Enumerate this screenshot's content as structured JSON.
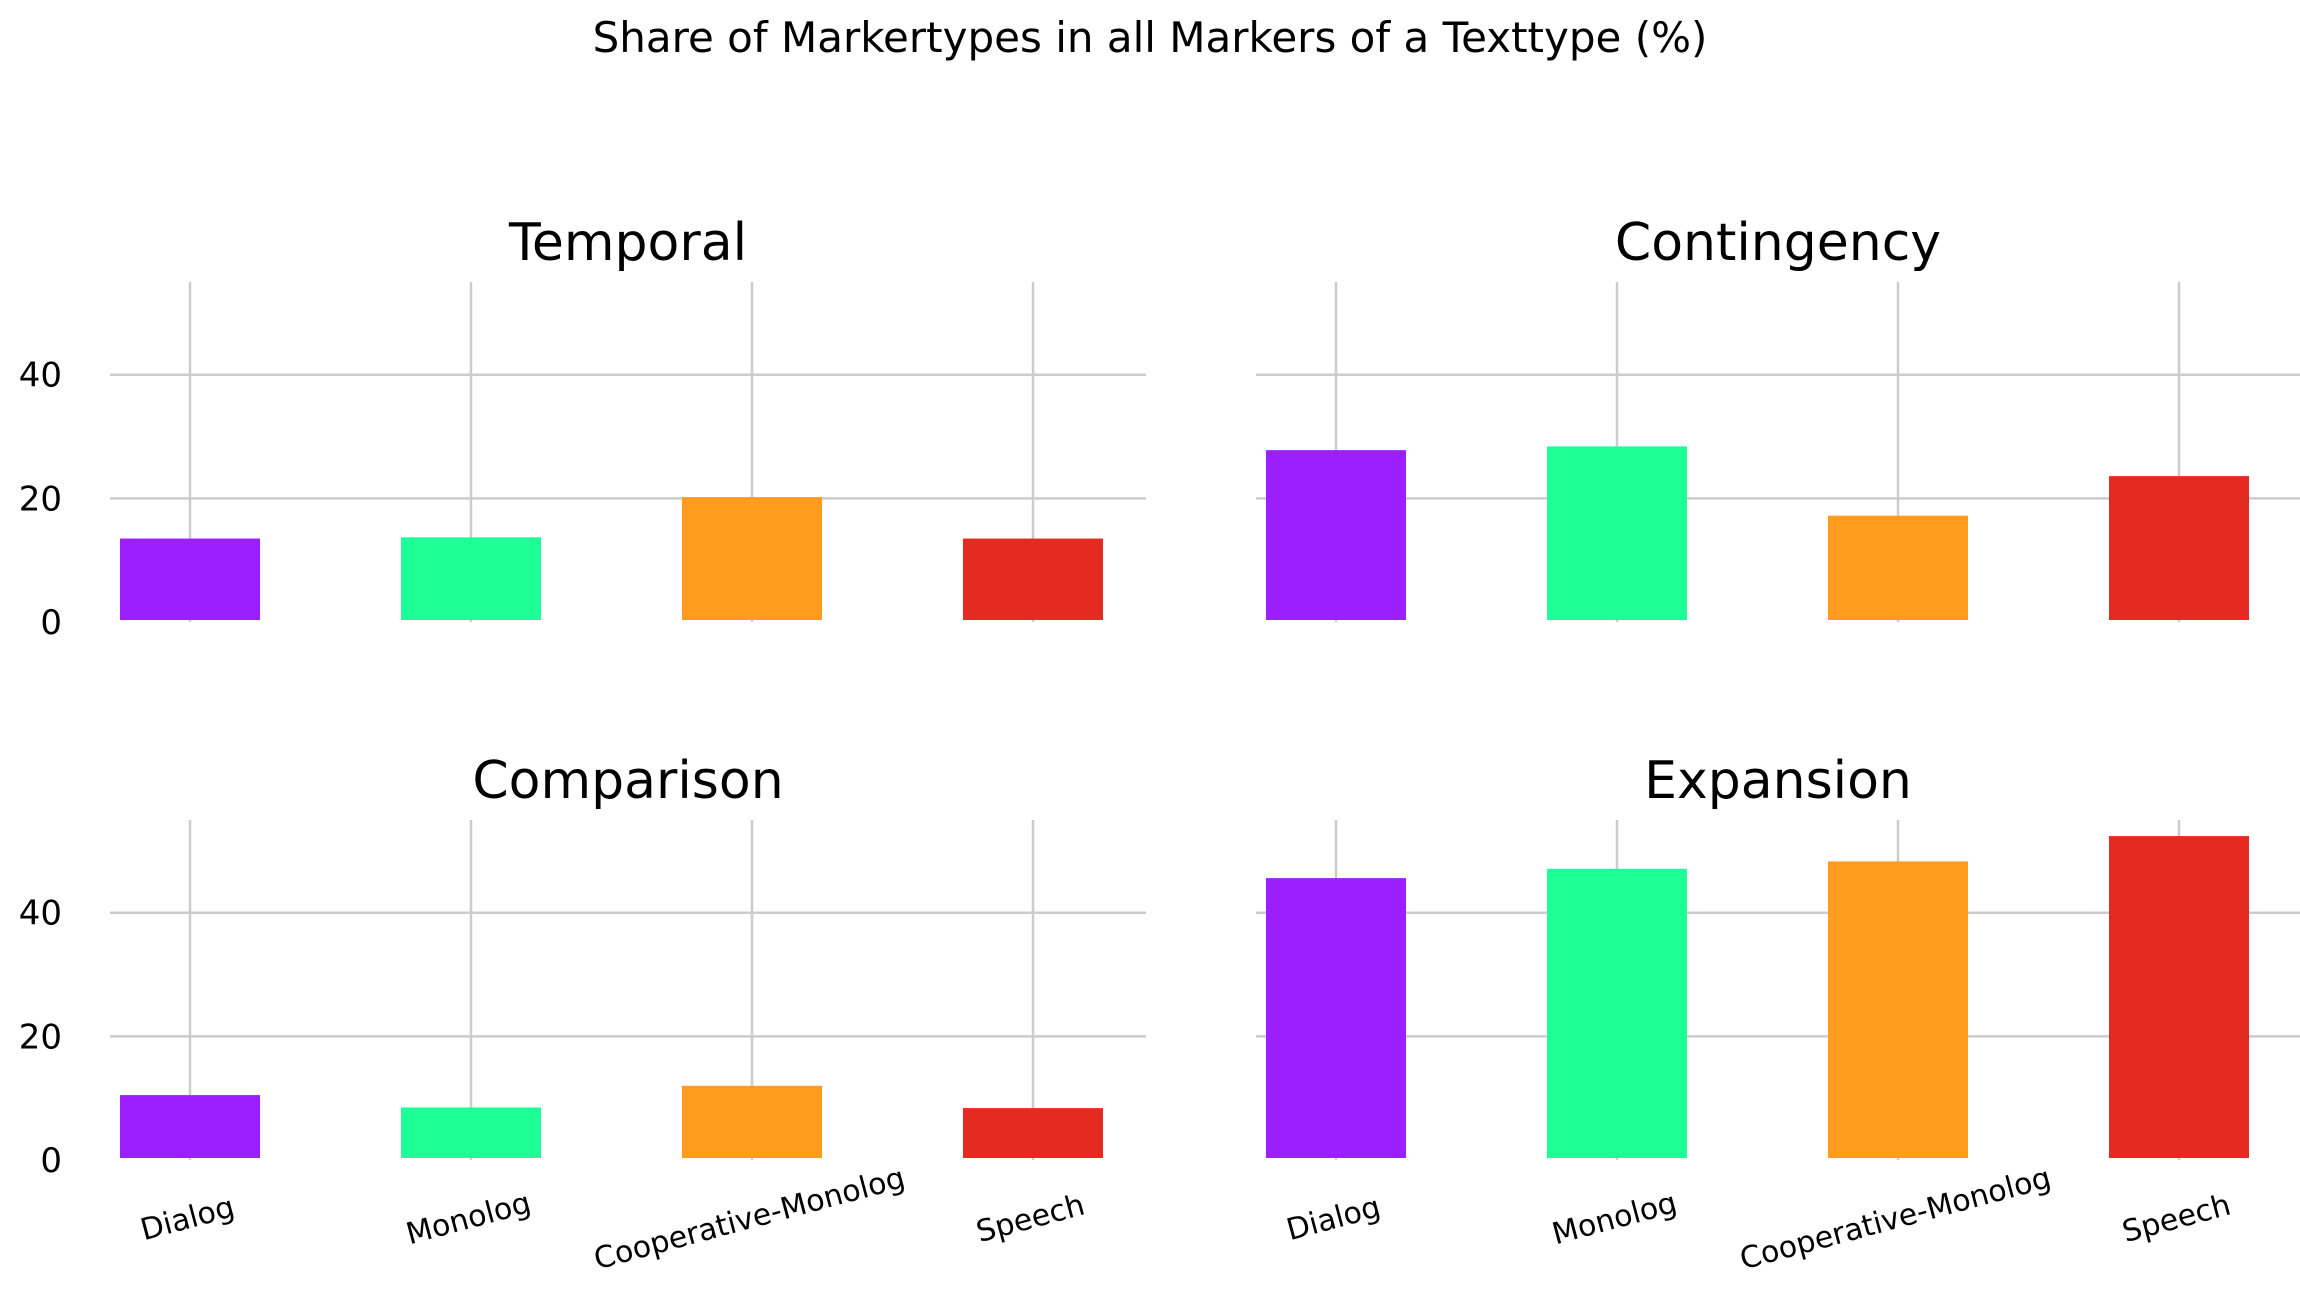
{
  "figure_title": "Share of Markertypes in all Markers of a Texttype (%)",
  "colors": {
    "grid": "#cccccc",
    "bars": [
      "#9b1fff",
      "#1dff96",
      "#ff9b1f",
      "#e52b21"
    ]
  },
  "chart_data": [
    {
      "type": "bar",
      "title": "Temporal",
      "categories": [
        "Dialog",
        "Monolog",
        "Cooperative-Monolog",
        "Speech"
      ],
      "values": [
        13.5,
        13.7,
        20.2,
        13.5
      ],
      "ylim": [
        0,
        55
      ],
      "yticks": [
        0,
        20,
        40
      ],
      "grid": true,
      "show_xticklabels": false,
      "show_yticklabels": true
    },
    {
      "type": "bar",
      "title": "Contingency",
      "categories": [
        "Dialog",
        "Monolog",
        "Cooperative-Monolog",
        "Speech"
      ],
      "values": [
        27.8,
        28.4,
        17.2,
        23.6
      ],
      "ylim": [
        0,
        55
      ],
      "yticks": [
        0,
        20,
        40
      ],
      "grid": true,
      "show_xticklabels": false,
      "show_yticklabels": false
    },
    {
      "type": "bar",
      "title": "Comparison",
      "categories": [
        "Dialog",
        "Monolog",
        "Cooperative-Monolog",
        "Speech"
      ],
      "values": [
        10.5,
        8.5,
        12.0,
        8.4
      ],
      "ylim": [
        0,
        55
      ],
      "yticks": [
        0,
        20,
        40
      ],
      "grid": true,
      "show_xticklabels": true,
      "show_yticklabels": true
    },
    {
      "type": "bar",
      "title": "Expansion",
      "categories": [
        "Dialog",
        "Monolog",
        "Cooperative-Monolog",
        "Speech"
      ],
      "values": [
        45.6,
        47.1,
        48.3,
        52.4
      ],
      "ylim": [
        0,
        55
      ],
      "yticks": [
        0,
        20,
        40
      ],
      "grid": true,
      "show_xticklabels": true,
      "show_yticklabels": false
    }
  ]
}
